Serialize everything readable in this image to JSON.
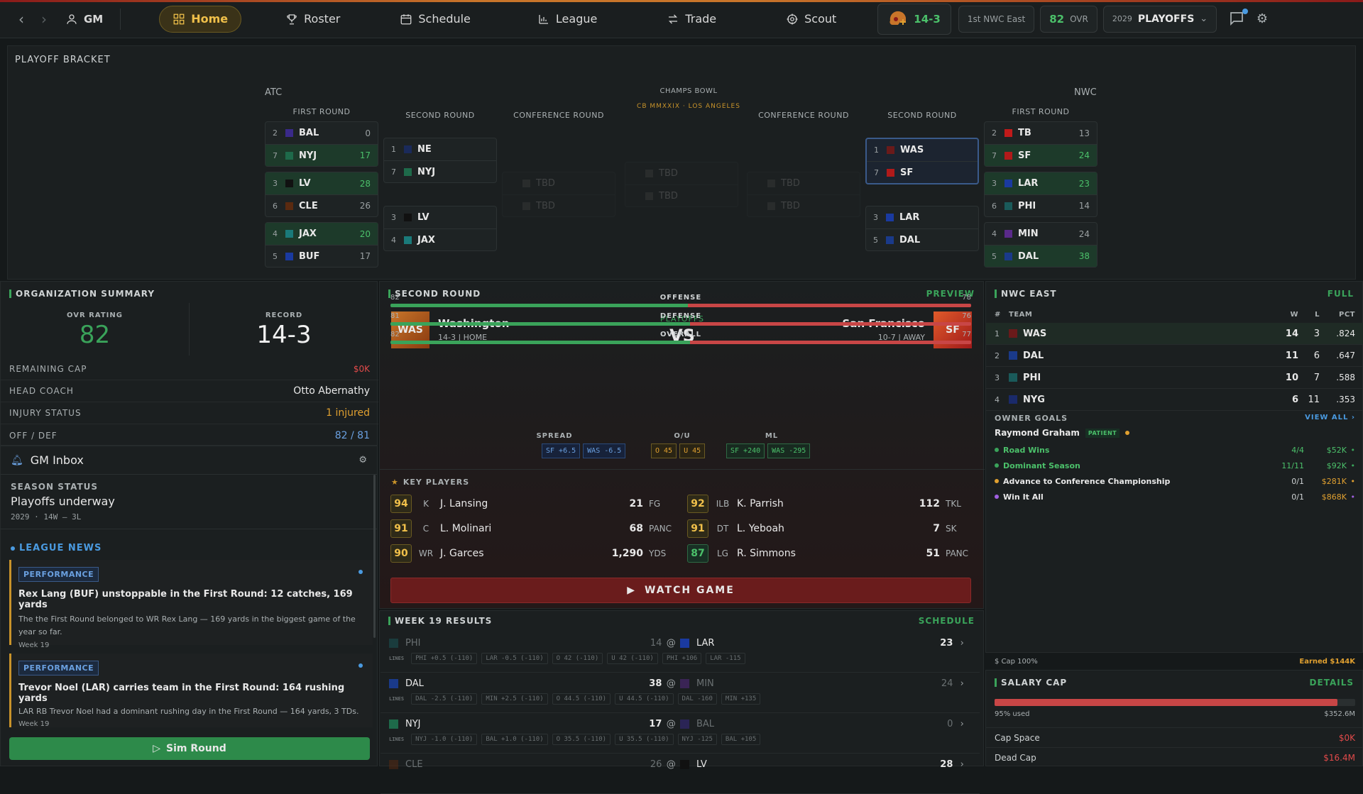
{
  "nav": {
    "gm_label": "GM",
    "items": [
      {
        "label": "Home",
        "icon": "grid-icon",
        "active": true
      },
      {
        "label": "Roster",
        "icon": "trophy-icon"
      },
      {
        "label": "Schedule",
        "icon": "calendar-icon"
      },
      {
        "label": "League",
        "icon": "chart-icon"
      },
      {
        "label": "Trade",
        "icon": "swap-icon"
      },
      {
        "label": "Scout",
        "icon": "target-icon"
      }
    ],
    "record": "14-3",
    "standing": "1st NWC East",
    "ovr_value": "82",
    "ovr_label": "OVR",
    "season_year": "2029",
    "season_phase": "PLAYOFFS"
  },
  "bracket": {
    "title": "PLAYOFF BRACKET",
    "atc_label": "ATC",
    "nwc_label": "NWC",
    "champs_label": "CHAMPS BOWL",
    "champs_sub": "CB MMXXIX · LOS ANGELES",
    "rounds": {
      "first": "FIRST ROUND",
      "second": "SECOND ROUND",
      "conference": "CONFERENCE ROUND"
    },
    "tbd": "TBD",
    "atc_first": [
      {
        "t1": {
          "seed": "2",
          "team": "BAL",
          "score": "0",
          "color": "#3a2a8a"
        },
        "t2": {
          "seed": "7",
          "team": "NYJ",
          "score": "17",
          "color": "#1e6a4a"
        },
        "winner": 2
      },
      {
        "t1": {
          "seed": "3",
          "team": "LV",
          "score": "28",
          "color": "#111111"
        },
        "t2": {
          "seed": "6",
          "team": "CLE",
          "score": "26",
          "color": "#5a2a10"
        },
        "winner": 1
      },
      {
        "t1": {
          "seed": "4",
          "team": "JAX",
          "score": "20",
          "color": "#1a7a7a"
        },
        "t2": {
          "seed": "5",
          "team": "BUF",
          "score": "17",
          "color": "#1a3aa0"
        },
        "winner": 1
      }
    ],
    "atc_second": [
      {
        "t1": {
          "seed": "1",
          "team": "NE",
          "score": "",
          "color": "#1a2a5a"
        },
        "t2": {
          "seed": "7",
          "team": "NYJ",
          "score": "",
          "color": "#1e6a4a"
        }
      },
      {
        "t1": {
          "seed": "3",
          "team": "LV",
          "score": "",
          "color": "#111111"
        },
        "t2": {
          "seed": "4",
          "team": "JAX",
          "score": "",
          "color": "#1a7a7a"
        }
      }
    ],
    "nwc_second": [
      {
        "t1": {
          "seed": "1",
          "team": "WAS",
          "score": "",
          "color": "#6a1a1a"
        },
        "t2": {
          "seed": "7",
          "team": "SF",
          "score": "",
          "color": "#b01a1a"
        }
      },
      {
        "t1": {
          "seed": "3",
          "team": "LAR",
          "score": "",
          "color": "#1a3aa0"
        },
        "t2": {
          "seed": "5",
          "team": "DAL",
          "score": "",
          "color": "#1a3a8a"
        }
      }
    ],
    "nwc_first": [
      {
        "t1": {
          "seed": "2",
          "team": "TB",
          "score": "13",
          "color": "#c01a1a"
        },
        "t2": {
          "seed": "7",
          "team": "SF",
          "score": "24",
          "color": "#b01a1a"
        },
        "winner": 2
      },
      {
        "t1": {
          "seed": "3",
          "team": "LAR",
          "score": "23",
          "color": "#1a3aa0"
        },
        "t2": {
          "seed": "6",
          "team": "PHI",
          "score": "14",
          "color": "#1a5a5a"
        },
        "winner": 1
      },
      {
        "t1": {
          "seed": "4",
          "team": "MIN",
          "score": "24",
          "color": "#5a2a8a"
        },
        "t2": {
          "seed": "5",
          "team": "DAL",
          "score": "38",
          "color": "#1a3a8a"
        },
        "winner": 2
      }
    ]
  },
  "org": {
    "title": "ORGANIZATION SUMMARY",
    "ovr_label": "OVR RATING",
    "ovr_value": "82",
    "record_label": "RECORD",
    "record_value": "14-3",
    "rows": [
      {
        "k": "REMAINING CAP",
        "v": "$0K",
        "color": "#e04a4a"
      },
      {
        "k": "HEAD COACH",
        "v": "Otto Abernathy",
        "color": "#e8e8e8"
      },
      {
        "k": "INJURY STATUS",
        "v": "1 injured",
        "color": "#e0a030"
      },
      {
        "k": "OFF / DEF",
        "v": "82 / 81",
        "color": "#6aa0e0"
      }
    ]
  },
  "inbox": {
    "title": "GM Inbox",
    "season_label": "SEASON STATUS",
    "season_status": "Playoffs underway",
    "season_meta": "2029 · 14W — 3L",
    "news_label": "LEAGUE NEWS",
    "news": [
      {
        "tag": "PERFORMANCE",
        "headline": "Rex Lang (BUF) unstoppable in the First Round: 12 catches, 169 yards",
        "body": "The the First Round belonged to WR Rex Lang — 169 yards in the biggest game of the year so far.",
        "week": "Week 19"
      },
      {
        "tag": "PERFORMANCE",
        "headline": "Trevor Noel (LAR) carries team in the First Round: 164 rushing yards",
        "body": "LAR RB Trevor Noel had a dominant rushing day in the First Round — 164 yards, 3 TDs.",
        "week": "Week 19"
      }
    ],
    "sim_label": "Sim Round"
  },
  "matchup": {
    "title": "SECOND ROUND",
    "preview_label": "PREVIEW",
    "home": {
      "abbr": "WAS",
      "name": "Washington",
      "meta": "14-3 | HOME"
    },
    "away": {
      "abbr": "SF",
      "name": "San Francisco",
      "meta": "10-7 | AWAY"
    },
    "phase": "PLAYOFFS",
    "vs": "VS",
    "stats": [
      {
        "label": "OFFENSE",
        "home": 82,
        "away": 78
      },
      {
        "label": "DEFENSE",
        "home": 81,
        "away": 76
      },
      {
        "label": "OVERALL",
        "home": 82,
        "away": 77
      }
    ],
    "spread_label": "SPREAD",
    "ou_label": "O/U",
    "ml_label": "ML",
    "spread": [
      "SF +6.5",
      "WAS -6.5"
    ],
    "ou": [
      "O 45",
      "U 45"
    ],
    "ml": [
      "SF +240",
      "WAS -295"
    ],
    "key_players_label": "KEY PLAYERS",
    "players_left": [
      {
        "ovr": "94",
        "pos": "K",
        "name": "J. Lansing",
        "val": "21",
        "unit": "FG"
      },
      {
        "ovr": "91",
        "pos": "C",
        "name": "L. Molinari",
        "val": "68",
        "unit": "PANC"
      },
      {
        "ovr": "90",
        "pos": "WR",
        "name": "J. Garces",
        "val": "1,290",
        "unit": "YDS"
      }
    ],
    "players_right": [
      {
        "ovr": "92",
        "pos": "ILB",
        "name": "K. Parrish",
        "val": "112",
        "unit": "TKL"
      },
      {
        "ovr": "91",
        "pos": "DT",
        "name": "L. Yeboah",
        "val": "7",
        "unit": "SK"
      },
      {
        "ovr": "87",
        "pos": "LG",
        "name": "R. Simmons",
        "val": "51",
        "unit": "PANC"
      }
    ],
    "watch_label": "WATCH GAME"
  },
  "results": {
    "title": "WEEK 19 RESULTS",
    "schedule_label": "SCHEDULE",
    "lines_label": "LINES",
    "games": [
      {
        "away": "PHI",
        "away_score": "14",
        "away_color": "#1a5a5a",
        "home": "LAR",
        "home_score": "23",
        "home_color": "#1a3aa0",
        "winner": "home",
        "lines": [
          "PHI +0.5 (-110)",
          "LAR -0.5 (-110)",
          "O 42 (-110)",
          "U 42 (-110)",
          "PHI +106",
          "LAR -115"
        ]
      },
      {
        "away": "DAL",
        "away_score": "38",
        "away_color": "#1a3a8a",
        "home": "MIN",
        "home_score": "24",
        "home_color": "#5a2a8a",
        "winner": "away",
        "lines": [
          "DAL -2.5 (-110)",
          "MIN +2.5 (-110)",
          "O 44.5 (-110)",
          "U 44.5 (-110)",
          "DAL -160",
          "MIN +135"
        ]
      },
      {
        "away": "NYJ",
        "away_score": "17",
        "away_color": "#1e6a4a",
        "home": "BAL",
        "home_score": "0",
        "home_color": "#3a2a8a",
        "winner": "away",
        "lines": [
          "NYJ -1.0 (-110)",
          "BAL +1.0 (-110)",
          "O 35.5 (-110)",
          "U 35.5 (-110)",
          "NYJ -125",
          "BAL +105"
        ]
      },
      {
        "away": "CLE",
        "away_score": "26",
        "away_color": "#5a2a10",
        "home": "LV",
        "home_score": "28",
        "home_color": "#111111",
        "winner": "home",
        "lines": []
      }
    ]
  },
  "division": {
    "title": "NWC EAST",
    "full_label": "FULL",
    "headers": {
      "rank": "#",
      "team": "TEAM",
      "w": "W",
      "l": "L",
      "pct": "PCT"
    },
    "rows": [
      {
        "rank": "1",
        "team": "WAS",
        "w": "14",
        "l": "3",
        "pct": ".824",
        "color": "#6a1a1a"
      },
      {
        "rank": "2",
        "team": "DAL",
        "w": "11",
        "l": "6",
        "pct": ".647",
        "color": "#1a3a8a"
      },
      {
        "rank": "3",
        "team": "PHI",
        "w": "10",
        "l": "7",
        "pct": ".588",
        "color": "#1a5a5a"
      },
      {
        "rank": "4",
        "team": "NYG",
        "w": "6",
        "l": "11",
        "pct": ".353",
        "color": "#1a2a6a"
      }
    ]
  },
  "goals": {
    "title": "OWNER GOALS",
    "view_all": "VIEW ALL ›",
    "owner": "Raymond Graham",
    "owner_tag": "PATIENT",
    "items": [
      {
        "name": "Road Wins",
        "progress": "4/4",
        "money": "$52K",
        "color": "#3aa35a",
        "done": true
      },
      {
        "name": "Dominant Season",
        "progress": "11/11",
        "money": "$92K",
        "color": "#3aa35a",
        "done": true
      },
      {
        "name": "Advance to Conference Championship",
        "progress": "0/1",
        "money": "$281K",
        "color": "#e0a030",
        "done": false
      },
      {
        "name": "Win It All",
        "progress": "0/1",
        "money": "$868K",
        "color": "#a060e0",
        "done": false
      }
    ],
    "cap_note": "Cap 100%",
    "earned": "Earned $144K"
  },
  "salary": {
    "title": "SALARY CAP",
    "details_label": "DETAILS",
    "used_pct": 95,
    "used_label": "95% used",
    "total": "$352.6M",
    "rows": [
      {
        "k": "Cap Space",
        "v": "$0K"
      },
      {
        "k": "Dead Cap",
        "v": "$16.4M"
      }
    ]
  }
}
